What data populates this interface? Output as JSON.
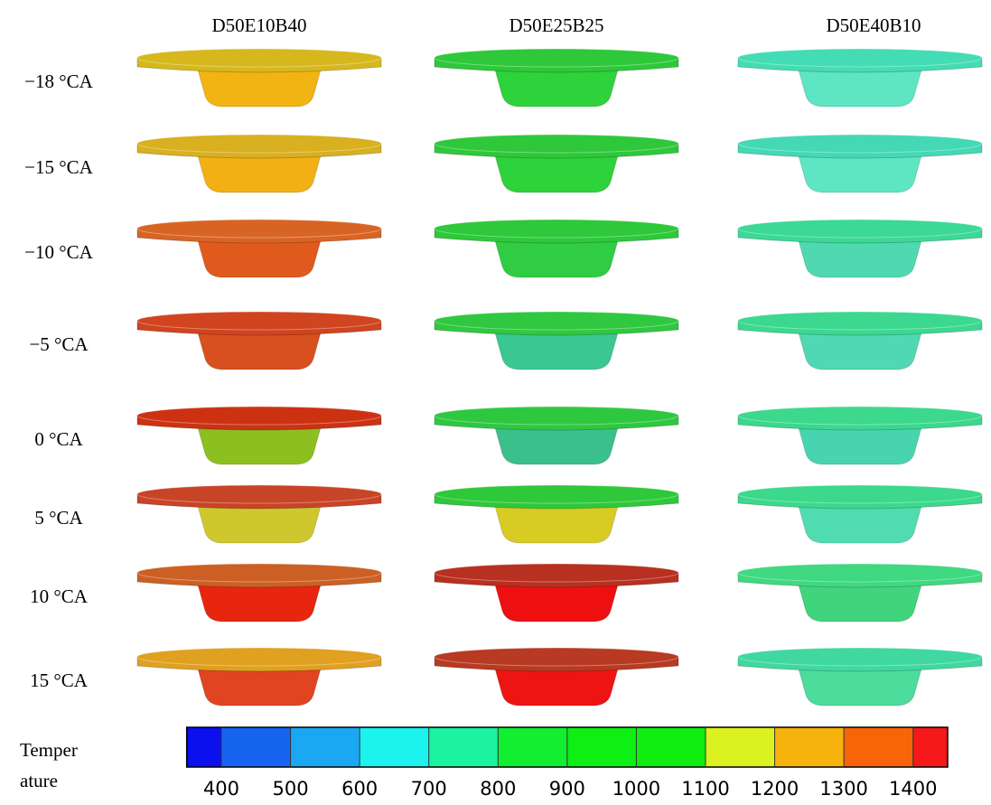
{
  "columns": [
    "D50E10B40",
    "D50E25B25",
    "D50E40B10"
  ],
  "rows": [
    "−18 °CA",
    "−15 °CA",
    "−10 °CA",
    "−5 °CA",
    "0 °CA",
    "5 °CA",
    "10 °CA",
    "15 °CA"
  ],
  "cells": [
    [
      {
        "top": "#d6b81e",
        "body": "#f2b412"
      },
      {
        "top": "#2ec83a",
        "body": "#2ed23a"
      },
      {
        "top": "#44dcb4",
        "body": "#5ee6c4"
      }
    ],
    [
      {
        "top": "#d8b020",
        "body": "#f2b014"
      },
      {
        "top": "#2ec83a",
        "body": "#2ed23a"
      },
      {
        "top": "#44d8b4",
        "body": "#5ee6c4"
      }
    ],
    [
      {
        "top": "#d86424",
        "body": "#e05a1e"
      },
      {
        "top": "#2ec83a",
        "body": "#30cc44"
      },
      {
        "top": "#3cd896",
        "body": "#50d8b0"
      }
    ],
    [
      {
        "top": "#d04420",
        "body": "#d8501e"
      },
      {
        "top": "#30c840",
        "body": "#3ac890"
      },
      {
        "top": "#3cd890",
        "body": "#50d8b4"
      }
    ],
    [
      {
        "top": "#cc3212",
        "body": "#8cc020"
      },
      {
        "top": "#2ec840",
        "body": "#3ac08a"
      },
      {
        "top": "#3cd88c",
        "body": "#48d4b0"
      }
    ],
    [
      {
        "top": "#c84426",
        "body": "#cec82e"
      },
      {
        "top": "#2ec83a",
        "body": "#d8cc24"
      },
      {
        "top": "#3cd88c",
        "body": "#50dcb0"
      }
    ],
    [
      {
        "top": "#cc6024",
        "body": "#e82610"
      },
      {
        "top": "#b83020",
        "body": "#ee1010"
      },
      {
        "top": "#40d880",
        "body": "#40d47c"
      }
    ],
    [
      {
        "top": "#e0a020",
        "body": "#e04420"
      },
      {
        "top": "#b83a22",
        "body": "#ee1414"
      },
      {
        "top": "#40d8a0",
        "body": "#4cdc9c"
      }
    ]
  ],
  "colorbar": {
    "label": [
      "Temper",
      "ature"
    ],
    "lim": [
      350,
      1450
    ],
    "ticks": [
      400,
      500,
      600,
      700,
      800,
      900,
      1000,
      1100,
      1200,
      1300,
      1400
    ],
    "colors": [
      "#0a10ee",
      "#1664f0",
      "#1aa8f2",
      "#1cf2ee",
      "#1cf2a0",
      "#12ee30",
      "#0ef014",
      "#10ee10",
      "#dcf220",
      "#f8b20c",
      "#f86408",
      "#f41818"
    ]
  }
}
